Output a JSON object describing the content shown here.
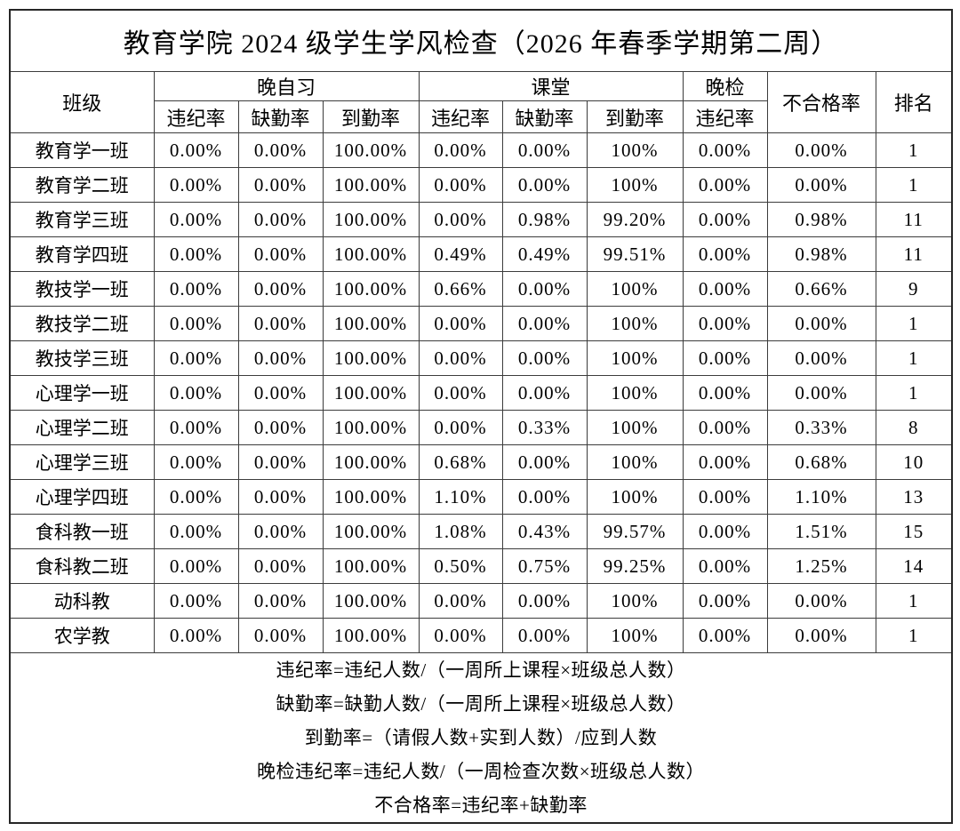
{
  "title": "教育学院 2024 级学生学风检查（2026 年春季学期第二周）",
  "colors": {
    "background": "#ffffff",
    "grid_line": "#3c3c3c",
    "outer_border": "#262626",
    "text": "#000000"
  },
  "table": {
    "header": {
      "class_label": "班级",
      "groups": [
        {
          "label": "晚自习",
          "colspan": 3
        },
        {
          "label": "课堂",
          "colspan": 3
        },
        {
          "label": "晚检",
          "colspan": 1
        }
      ],
      "sub_headers": [
        "违纪率",
        "缺勤率",
        "到勤率",
        "违纪率",
        "缺勤率",
        "到勤率",
        "违纪率"
      ],
      "fail_rate_label": "不合格率",
      "rank_label": "排名"
    },
    "rows": [
      [
        "教育学一班",
        "0.00%",
        "0.00%",
        "100.00%",
        "0.00%",
        "0.00%",
        "100%",
        "0.00%",
        "0.00%",
        "1"
      ],
      [
        "教育学二班",
        "0.00%",
        "0.00%",
        "100.00%",
        "0.00%",
        "0.00%",
        "100%",
        "0.00%",
        "0.00%",
        "1"
      ],
      [
        "教育学三班",
        "0.00%",
        "0.00%",
        "100.00%",
        "0.00%",
        "0.98%",
        "99.20%",
        "0.00%",
        "0.98%",
        "11"
      ],
      [
        "教育学四班",
        "0.00%",
        "0.00%",
        "100.00%",
        "0.49%",
        "0.49%",
        "99.51%",
        "0.00%",
        "0.98%",
        "11"
      ],
      [
        "教技学一班",
        "0.00%",
        "0.00%",
        "100.00%",
        "0.66%",
        "0.00%",
        "100%",
        "0.00%",
        "0.66%",
        "9"
      ],
      [
        "教技学二班",
        "0.00%",
        "0.00%",
        "100.00%",
        "0.00%",
        "0.00%",
        "100%",
        "0.00%",
        "0.00%",
        "1"
      ],
      [
        "教技学三班",
        "0.00%",
        "0.00%",
        "100.00%",
        "0.00%",
        "0.00%",
        "100%",
        "0.00%",
        "0.00%",
        "1"
      ],
      [
        "心理学一班",
        "0.00%",
        "0.00%",
        "100.00%",
        "0.00%",
        "0.00%",
        "100%",
        "0.00%",
        "0.00%",
        "1"
      ],
      [
        "心理学二班",
        "0.00%",
        "0.00%",
        "100.00%",
        "0.00%",
        "0.33%",
        "100%",
        "0.00%",
        "0.33%",
        "8"
      ],
      [
        "心理学三班",
        "0.00%",
        "0.00%",
        "100.00%",
        "0.68%",
        "0.00%",
        "100%",
        "0.00%",
        "0.68%",
        "10"
      ],
      [
        "心理学四班",
        "0.00%",
        "0.00%",
        "100.00%",
        "1.10%",
        "0.00%",
        "100%",
        "0.00%",
        "1.10%",
        "13"
      ],
      [
        "食科教一班",
        "0.00%",
        "0.00%",
        "100.00%",
        "1.08%",
        "0.43%",
        "99.57%",
        "0.00%",
        "1.51%",
        "15"
      ],
      [
        "食科教二班",
        "0.00%",
        "0.00%",
        "100.00%",
        "0.50%",
        "0.75%",
        "99.25%",
        "0.00%",
        "1.25%",
        "14"
      ],
      [
        "动科教",
        "0.00%",
        "0.00%",
        "100.00%",
        "0.00%",
        "0.00%",
        "100%",
        "0.00%",
        "0.00%",
        "1"
      ],
      [
        "农学教",
        "0.00%",
        "0.00%",
        "100.00%",
        "0.00%",
        "0.00%",
        "100%",
        "0.00%",
        "0.00%",
        "1"
      ]
    ]
  },
  "notes": [
    "违纪率=违纪人数/（一周所上课程×班级总人数）",
    "缺勤率=缺勤人数/（一周所上课程×班级总人数）",
    "到勤率=（请假人数+实到人数）/应到人数",
    "晚检违纪率=违纪人数/（一周检查次数×班级总人数）",
    "不合格率=违纪率+缺勤率"
  ]
}
